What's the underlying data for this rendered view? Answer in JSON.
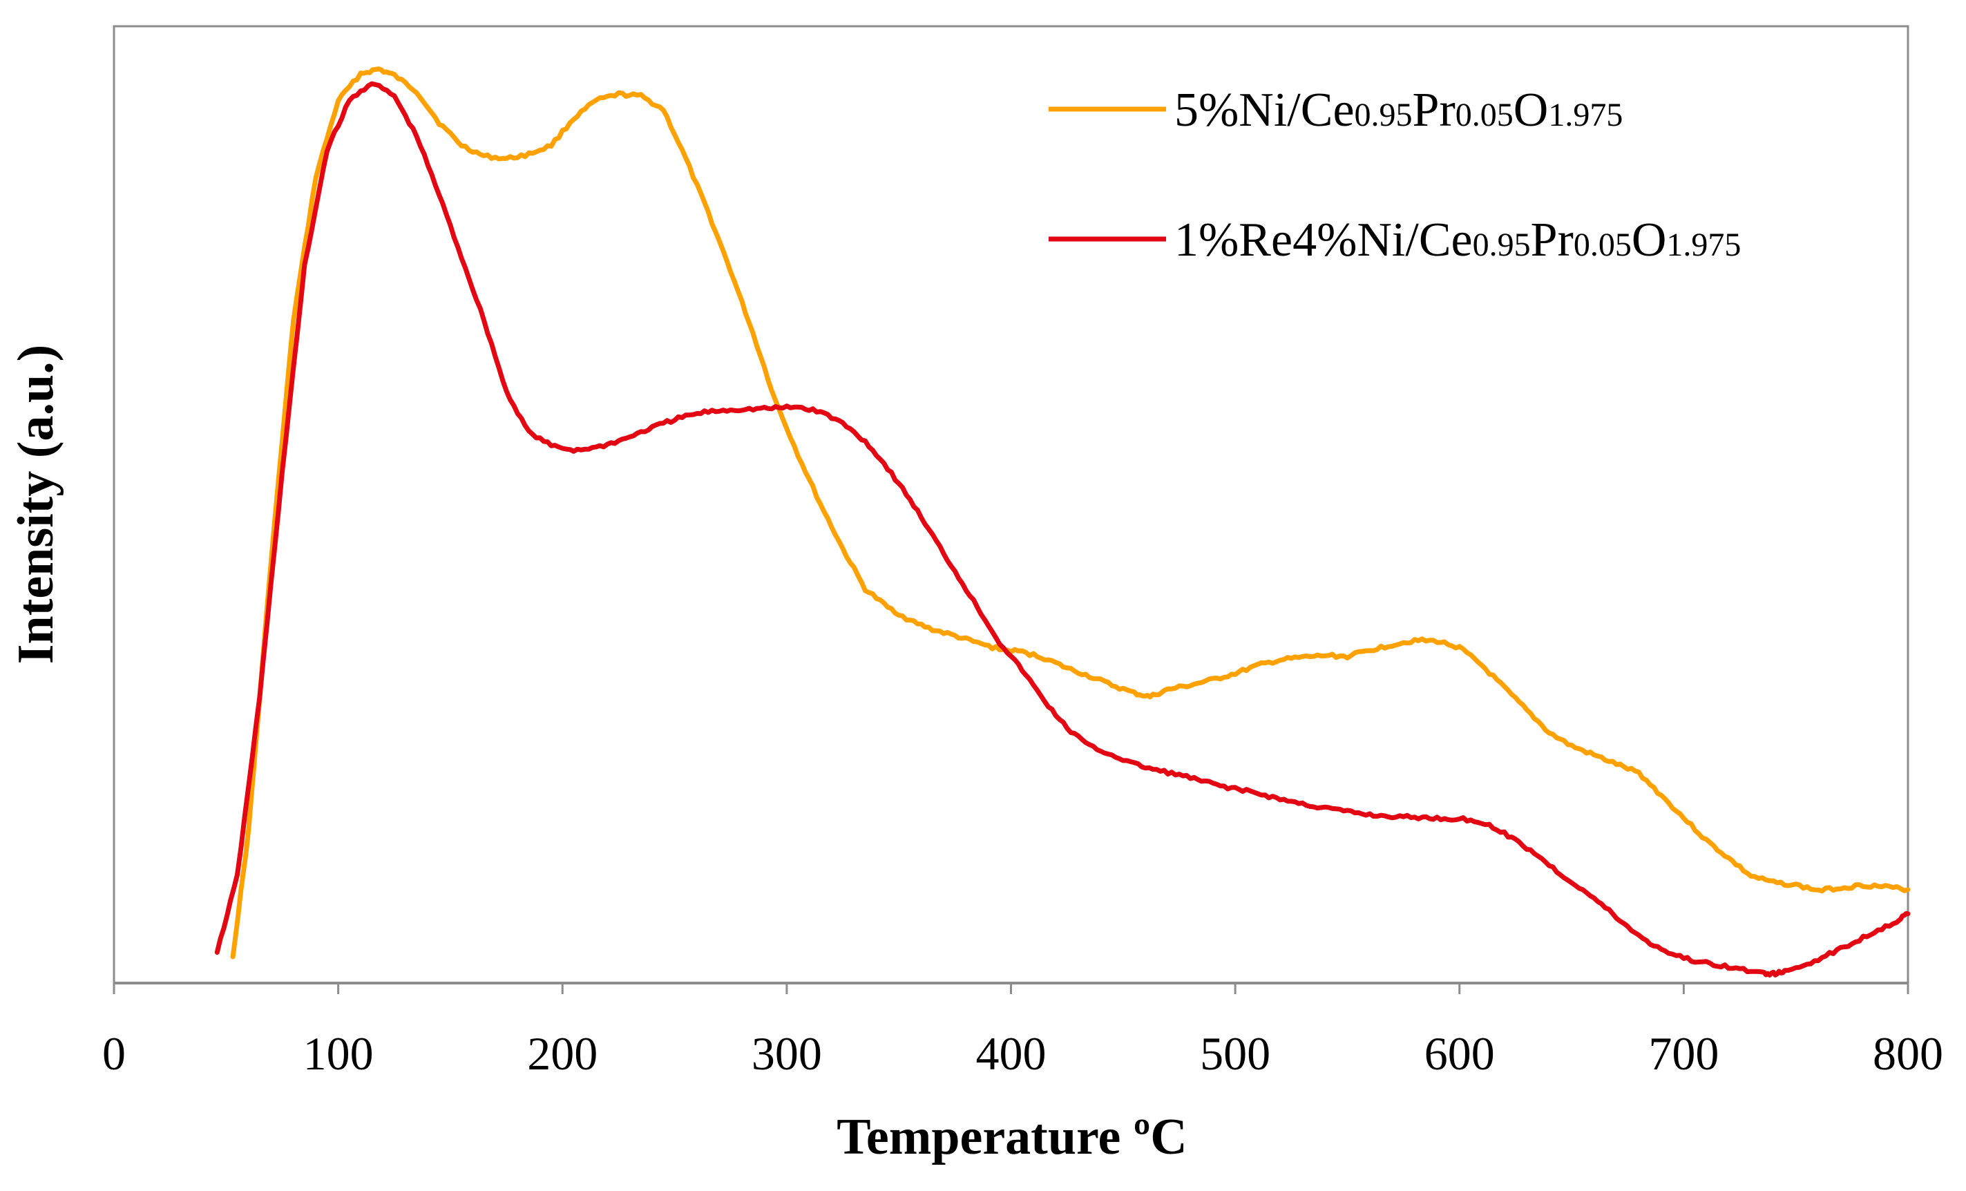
{
  "chart_data": {
    "type": "line",
    "title": "",
    "xlabel": "Temperature ºC",
    "ylabel": "Intensity (a.u.)",
    "xlim": [
      0,
      800
    ],
    "ylim": [
      0,
      100
    ],
    "x_ticks": [
      "0",
      "100",
      "200",
      "300",
      "400",
      "500",
      "600",
      "700",
      "800"
    ],
    "y_ticks_shown": false,
    "grid": false,
    "legend_position": "top-right",
    "series": [
      {
        "name": "5%Ni/Ce0.95Pr0.05O1.975",
        "legend_parts": [
          {
            "text": "5%Ni/Ce",
            "sub": false
          },
          {
            "text": "0.95",
            "sub": true
          },
          {
            "text": "Pr",
            "sub": false
          },
          {
            "text": "0.05",
            "sub": true
          },
          {
            "text": "O",
            "sub": false
          },
          {
            "text": "1.975",
            "sub": true
          }
        ],
        "color": "#FFA100",
        "x": [
          53,
          60,
          70,
          80,
          90,
          100,
          110,
          118,
          125,
          135,
          145,
          155,
          165,
          175,
          185,
          195,
          205,
          215,
          225,
          235,
          245,
          255,
          265,
          275,
          285,
          295,
          305,
          315,
          325,
          335,
          345,
          355,
          365,
          375,
          385,
          395,
          405,
          415,
          425,
          435,
          445,
          455,
          462,
          470,
          480,
          490,
          500,
          510,
          520,
          530,
          540,
          550,
          560,
          570,
          580,
          590,
          600,
          610,
          620,
          630,
          640,
          650,
          660,
          670,
          680,
          690,
          700,
          710,
          720,
          730,
          740,
          750,
          760,
          770,
          780,
          790,
          800
        ],
        "y": [
          1,
          15,
          45,
          72,
          88,
          96.5,
          99.5,
          100,
          99.3,
          97.5,
          94,
          91.5,
          90.3,
          90,
          90.5,
          91.5,
          94.5,
          96.5,
          97.2,
          97,
          95.5,
          90,
          84,
          77.5,
          70.5,
          63,
          57,
          51.5,
          46.5,
          42,
          40,
          38.5,
          37.5,
          36.8,
          36,
          35.3,
          35,
          34.3,
          33.2,
          32.3,
          31.3,
          30.4,
          30,
          30.8,
          31.3,
          31.9,
          32.6,
          33.5,
          34.1,
          34.4,
          34.6,
          34.5,
          35.2,
          35.8,
          36.3,
          36.2,
          35.5,
          33.5,
          31,
          28.5,
          26,
          24.5,
          23.5,
          22.5,
          21.5,
          19,
          16.5,
          14,
          12,
          10,
          9.3,
          9,
          8.4,
          8.7,
          9,
          8.8,
          8.5
        ]
      },
      {
        "name": "1%Re4%Ni/Ce0.95Pr0.05O1.975",
        "legend_parts": [
          {
            "text": "1%Re4%Ni/Ce",
            "sub": false
          },
          {
            "text": "0.95",
            "sub": true
          },
          {
            "text": "Pr",
            "sub": false
          },
          {
            "text": "0.05",
            "sub": true
          },
          {
            "text": "O",
            "sub": false
          },
          {
            "text": "1.975",
            "sub": true
          }
        ],
        "color": "#E30613",
        "x": [
          46,
          55,
          65,
          75,
          85,
          95,
          105,
          115,
          125,
          135,
          145,
          155,
          165,
          175,
          185,
          195,
          205,
          215,
          225,
          235,
          245,
          255,
          265,
          275,
          285,
          295,
          305,
          315,
          325,
          335,
          345,
          355,
          365,
          375,
          385,
          395,
          405,
          415,
          425,
          435,
          445,
          455,
          465,
          475,
          485,
          495,
          505,
          515,
          525,
          535,
          545,
          555,
          565,
          575,
          585,
          595,
          605,
          615,
          625,
          635,
          645,
          655,
          665,
          675,
          685,
          695,
          705,
          715,
          725,
          735,
          740,
          745,
          755,
          765,
          775,
          785,
          795,
          800
        ],
        "y": [
          1.5,
          10,
          30,
          55,
          78,
          91,
          96.5,
          98.5,
          97,
          92.5,
          86,
          79,
          72,
          64,
          59.5,
          58,
          57.5,
          57.8,
          58.5,
          59.5,
          60.5,
          61.3,
          61.8,
          62,
          62.1,
          62.2,
          62.3,
          61.8,
          60.5,
          58.5,
          55.5,
          52,
          48,
          44,
          40,
          36,
          33,
          29.5,
          26.5,
          24.5,
          23.5,
          22.5,
          21.8,
          21.3,
          20.6,
          20,
          19.5,
          18.9,
          18.3,
          17.8,
          17.4,
          17,
          16.7,
          16.6,
          16.5,
          16.4,
          16.3,
          15.5,
          14,
          12.3,
          10.2,
          8.5,
          6.5,
          4.3,
          2.5,
          1.3,
          0.5,
          0.1,
          -0.4,
          -0.8,
          -0.9,
          -0.7,
          0.2,
          1.3,
          2.5,
          3.8,
          5,
          5.8
        ]
      }
    ]
  }
}
